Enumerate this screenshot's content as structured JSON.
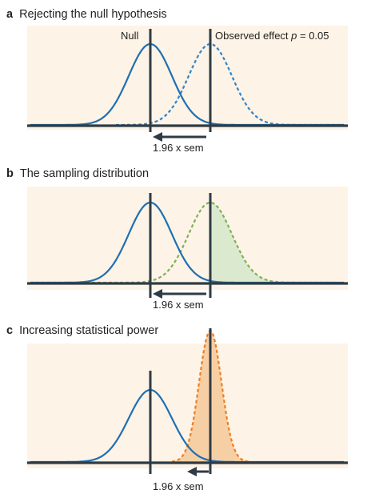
{
  "panels": {
    "a": {
      "letter": "a",
      "title": "Rejecting the null hypothesis",
      "null_label": "Null",
      "effect_label": "Observed effect ",
      "p_symbol": "p",
      "p_value": " = 0.05",
      "sem_label": "1.96 x sem"
    },
    "b": {
      "letter": "b",
      "title": "The sampling distribution",
      "sem_label": "1.96 x sem"
    },
    "c": {
      "letter": "c",
      "title": "Increasing statistical power",
      "sem_label": "1.96 x sem"
    }
  },
  "colors": {
    "null_curve": "#1f6fb2",
    "observed_curve_a": "#2f86cc",
    "sampling_curve": "#7fb05a",
    "sampling_fill": "#dbe9cf",
    "power_curve": "#ee7e22",
    "power_fill": "#f7cfa5",
    "axis": "#2f3b44",
    "background": "#fdf3e6"
  }
}
